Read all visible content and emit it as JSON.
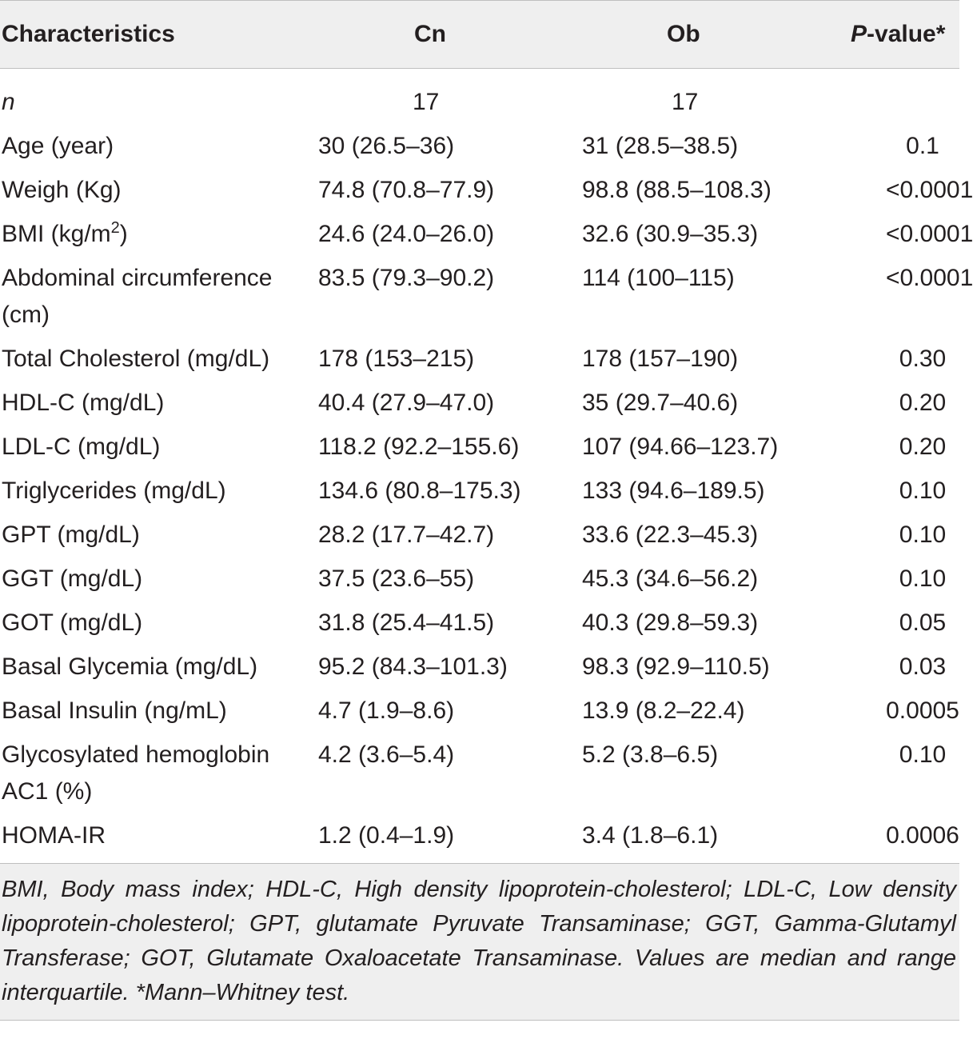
{
  "table": {
    "headers": {
      "characteristics": "Characteristics",
      "cn": "Cn",
      "ob": "Ob",
      "p_value_italic": "P",
      "p_value_rest": "-value*"
    },
    "rows": [
      {
        "label": "n",
        "cn": "17",
        "ob": "17",
        "p": ""
      },
      {
        "label": "Age (year)",
        "cn": "30 (26.5–36)",
        "ob": "31 (28.5–38.5)",
        "p": "0.1"
      },
      {
        "label": "Weigh (Kg)",
        "cn": "74.8 (70.8–77.9)",
        "ob": "98.8 (88.5–108.3)",
        "p": "<0.0001"
      },
      {
        "label_pre": "BMI (kg/m",
        "label_sup": "2",
        "label_post": ")",
        "cn": "24.6 (24.0–26.0)",
        "ob": "32.6 (30.9–35.3)",
        "p": "<0.0001"
      },
      {
        "label": "Abdominal circumference (cm)",
        "cn": "83.5 (79.3–90.2)",
        "ob": "114 (100–115)",
        "p": "<0.0001"
      },
      {
        "label": "Total Cholesterol (mg/dL)",
        "cn": "178 (153–215)",
        "ob": "178 (157–190)",
        "p": "0.30"
      },
      {
        "label": "HDL-C (mg/dL)",
        "cn": "40.4 (27.9–47.0)",
        "ob": "35 (29.7–40.6)",
        "p": "0.20"
      },
      {
        "label": "LDL-C (mg/dL)",
        "cn": "118.2 (92.2–155.6)",
        "ob": "107 (94.66–123.7)",
        "p": "0.20"
      },
      {
        "label": "Triglycerides (mg/dL)",
        "cn": "134.6 (80.8–175.3)",
        "ob": "133 (94.6–189.5)",
        "p": "0.10"
      },
      {
        "label": "GPT (mg/dL)",
        "cn": "28.2 (17.7–42.7)",
        "ob": "33.6 (22.3–45.3)",
        "p": "0.10"
      },
      {
        "label": "GGT (mg/dL)",
        "cn": "37.5 (23.6–55)",
        "ob": "45.3 (34.6–56.2)",
        "p": "0.10"
      },
      {
        "label": "GOT (mg/dL)",
        "cn": "31.8 (25.4–41.5)",
        "ob": "40.3 (29.8–59.3)",
        "p": "0.05"
      },
      {
        "label": "Basal Glycemia (mg/dL)",
        "cn": "95.2 (84.3–101.3)",
        "ob": "98.3 (92.9–110.5)",
        "p": "0.03"
      },
      {
        "label": "Basal Insulin (ng/mL)",
        "cn": "4.7 (1.9–8.6)",
        "ob": "13.9 (8.2–22.4)",
        "p": "0.0005"
      },
      {
        "label": "Glycosylated hemoglobin AC1 (%)",
        "cn": "4.2 (3.6–5.4)",
        "ob": "5.2 (3.8–6.5)",
        "p": "0.10"
      },
      {
        "label": "HOMA-IR",
        "cn": "1.2 (0.4–1.9)",
        "ob": "3.4 (1.8–6.1)",
        "p": "0.0006"
      }
    ],
    "footnote": "BMI, Body mass index; HDL-C, High density lipoprotein-cholesterol; LDL-C, Low density lipoprotein-cholesterol; GPT, glutamate Pyruvate Transaminase; GGT, Gamma-Glutamyl Transferase; GOT, Glutamate Oxaloacetate Transaminase. Values are median and range interquartile. *Mann–Whitney test."
  }
}
